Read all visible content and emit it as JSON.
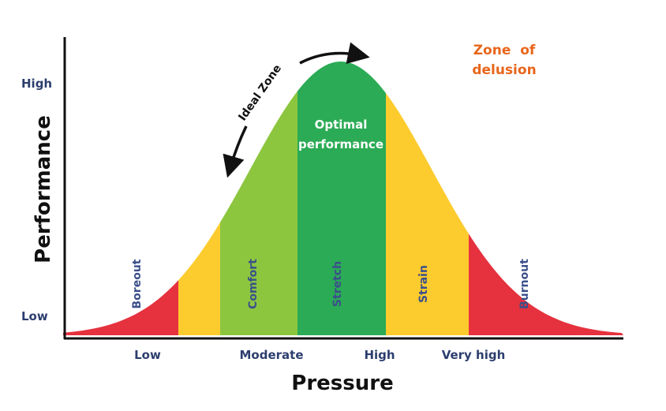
{
  "diagram": {
    "x_axis_title": "Pressure",
    "y_axis_title": "Performance",
    "x_ticks": [
      "Low",
      "Moderate",
      "High",
      "Very high"
    ],
    "y_ticks": [
      "High",
      "Low"
    ],
    "zones": [
      {
        "name": "Boreout",
        "color": "#e5323e"
      },
      {
        "name": "",
        "color": "#fccb2e"
      },
      {
        "name": "Comfort",
        "color": "#8cc63f"
      },
      {
        "name": "Stretch",
        "color": "#2bab55"
      },
      {
        "name": "Strain",
        "color": "#fccb2e"
      },
      {
        "name": "Burnout",
        "color": "#e5323e"
      }
    ],
    "optimal_line1": "Optimal",
    "optimal_line2": "performance",
    "ideal_zone": "Ideal Zone",
    "delusion_line1": "Zone  of",
    "delusion_line2": "delusion",
    "label_color": "#3b4f8a",
    "accent_orange": "#e8661b"
  }
}
